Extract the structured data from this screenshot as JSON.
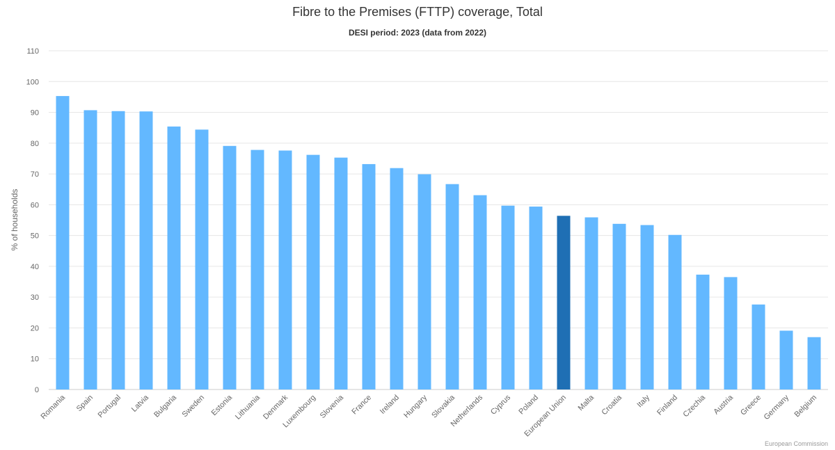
{
  "chart_data": {
    "type": "bar",
    "title": "Fibre to the Premises (FTTP) coverage, Total",
    "subtitle": "DESI period: 2023 (data from 2022)",
    "xlabel": "",
    "ylabel": "% of households",
    "ylim": [
      0,
      110
    ],
    "yticks": [
      0,
      10,
      20,
      30,
      40,
      50,
      60,
      70,
      80,
      90,
      100,
      110
    ],
    "grid": true,
    "legend": "none",
    "colors": {
      "bar": "#63b8ff",
      "highlight": "#1f6fb4",
      "grid": "#e6e6e6"
    },
    "highlight_category": "European Union",
    "categories": [
      "Romania",
      "Spain",
      "Portugal",
      "Latvia",
      "Bulgaria",
      "Sweden",
      "Estonia",
      "Lithuania",
      "Denmark",
      "Luxembourg",
      "Slovenia",
      "France",
      "Ireland",
      "Hungary",
      "Slovakia",
      "Netherlands",
      "Cyprus",
      "Poland",
      "European Union",
      "Malta",
      "Croatia",
      "Italy",
      "Finland",
      "Czechia",
      "Austria",
      "Greece",
      "Germany",
      "Belgium"
    ],
    "values": [
      95.3,
      90.7,
      90.4,
      90.3,
      85.4,
      84.4,
      79.1,
      77.8,
      77.6,
      76.2,
      75.3,
      73.2,
      71.9,
      69.9,
      66.7,
      63.1,
      59.7,
      59.4,
      56.4,
      55.9,
      53.8,
      53.4,
      50.2,
      37.3,
      36.5,
      27.6,
      19.1,
      17.0
    ]
  },
  "credit": "European Commission"
}
